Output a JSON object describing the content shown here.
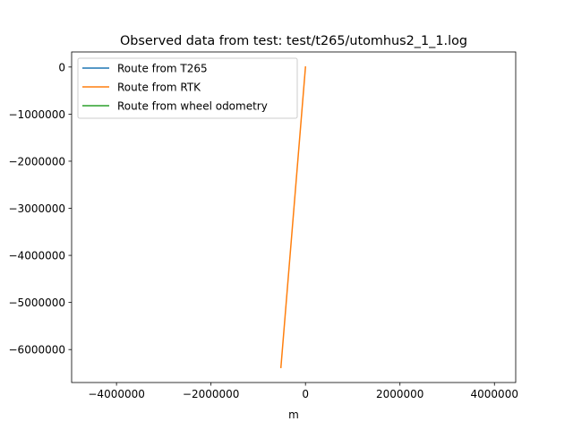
{
  "chart_data": {
    "type": "line",
    "title": "Observed data from test: test/t265/utomhus2_1_1.log",
    "xlabel": "m",
    "ylabel": "",
    "xlim": [
      -4950000,
      4450000
    ],
    "ylim": [
      -6700000,
      320000
    ],
    "grid": false,
    "legend_placement": "top-left",
    "xticks": [
      -4000000,
      -2000000,
      0,
      2000000,
      4000000
    ],
    "xtick_labels": [
      "−4000000",
      "−2000000",
      "0",
      "2000000",
      "4000000"
    ],
    "yticks": [
      0,
      -1000000,
      -2000000,
      -3000000,
      -4000000,
      -5000000,
      -6000000
    ],
    "ytick_labels": [
      "0",
      "−1000000",
      "−2000000",
      "−3000000",
      "−4000000",
      "−5000000",
      "−6000000"
    ],
    "series": [
      {
        "name": "Route from T265",
        "color": "#1f77b4",
        "x": [
          0
        ],
        "y": [
          0
        ]
      },
      {
        "name": "Route from RTK",
        "color": "#ff7f0e",
        "x": [
          0,
          -520000
        ],
        "y": [
          0,
          -6380000
        ]
      },
      {
        "name": "Route from wheel odometry",
        "color": "#2ca02c",
        "x": [
          0
        ],
        "y": [
          0
        ]
      }
    ]
  }
}
